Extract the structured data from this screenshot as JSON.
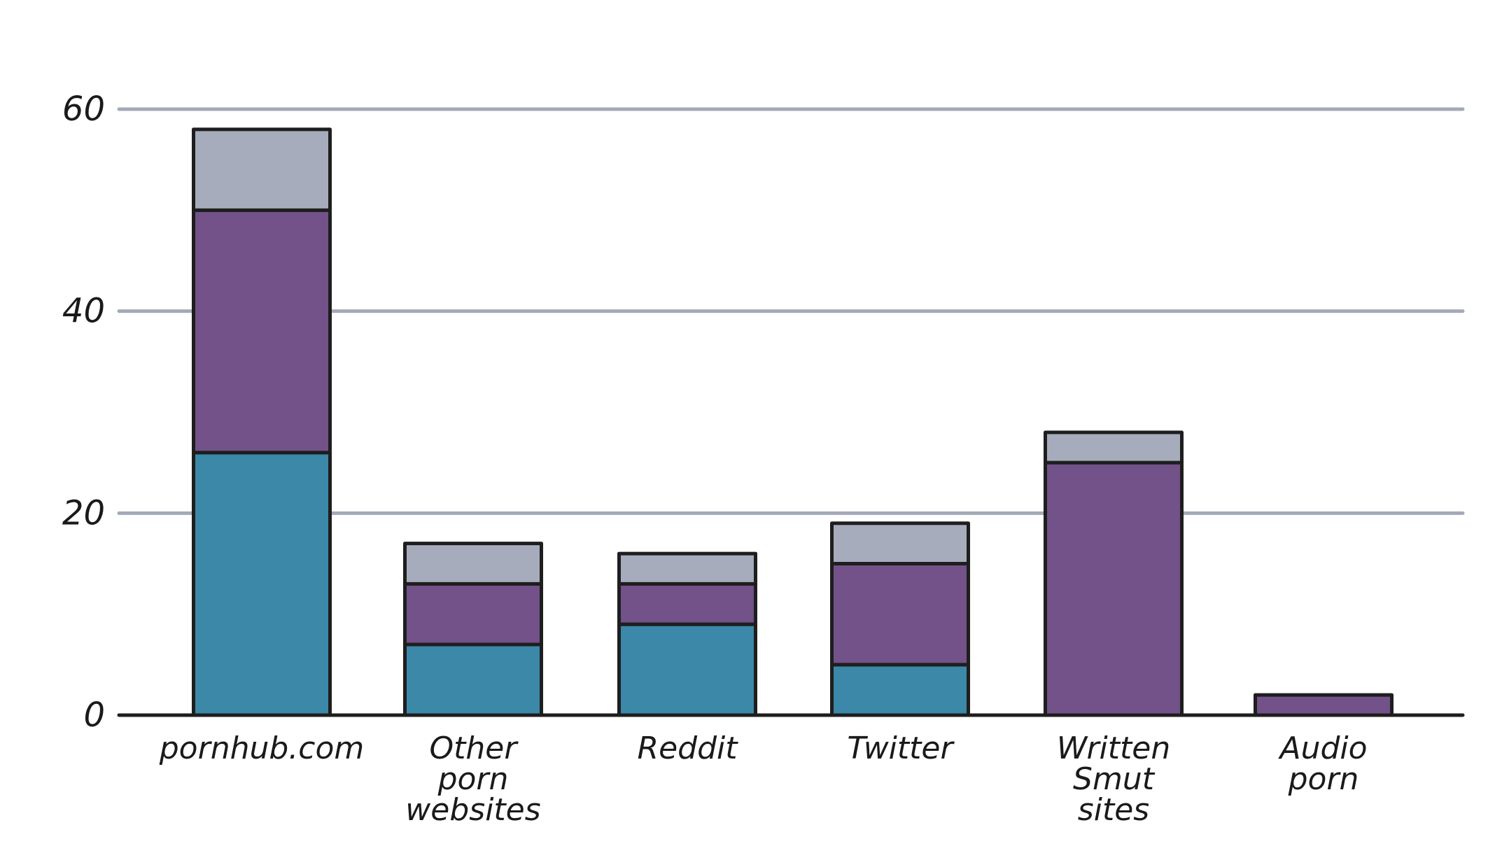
{
  "chart_data": {
    "type": "bar",
    "stacked": true,
    "categories": [
      [
        "pornhub.com"
      ],
      [
        "Other",
        "porn",
        "websites"
      ],
      [
        "Reddit"
      ],
      [
        "Twitter"
      ],
      [
        "Written",
        "Smut",
        "sites"
      ],
      [
        "Audio",
        "porn"
      ]
    ],
    "series": [
      {
        "values": [
          26,
          7,
          9,
          5,
          0,
          0
        ]
      },
      {
        "values": [
          24,
          6,
          4,
          10,
          25,
          2
        ]
      },
      {
        "values": [
          8,
          4,
          3,
          4,
          3,
          0
        ]
      }
    ],
    "yticks": [
      0,
      20,
      40,
      60
    ],
    "ylim": [
      0,
      60
    ],
    "grid": true,
    "colors": [
      "#3b88a8",
      "#725289",
      "#a7acbc"
    ],
    "gridline_color": "#a4a9b8",
    "outline_color": "#1e1e1e"
  }
}
